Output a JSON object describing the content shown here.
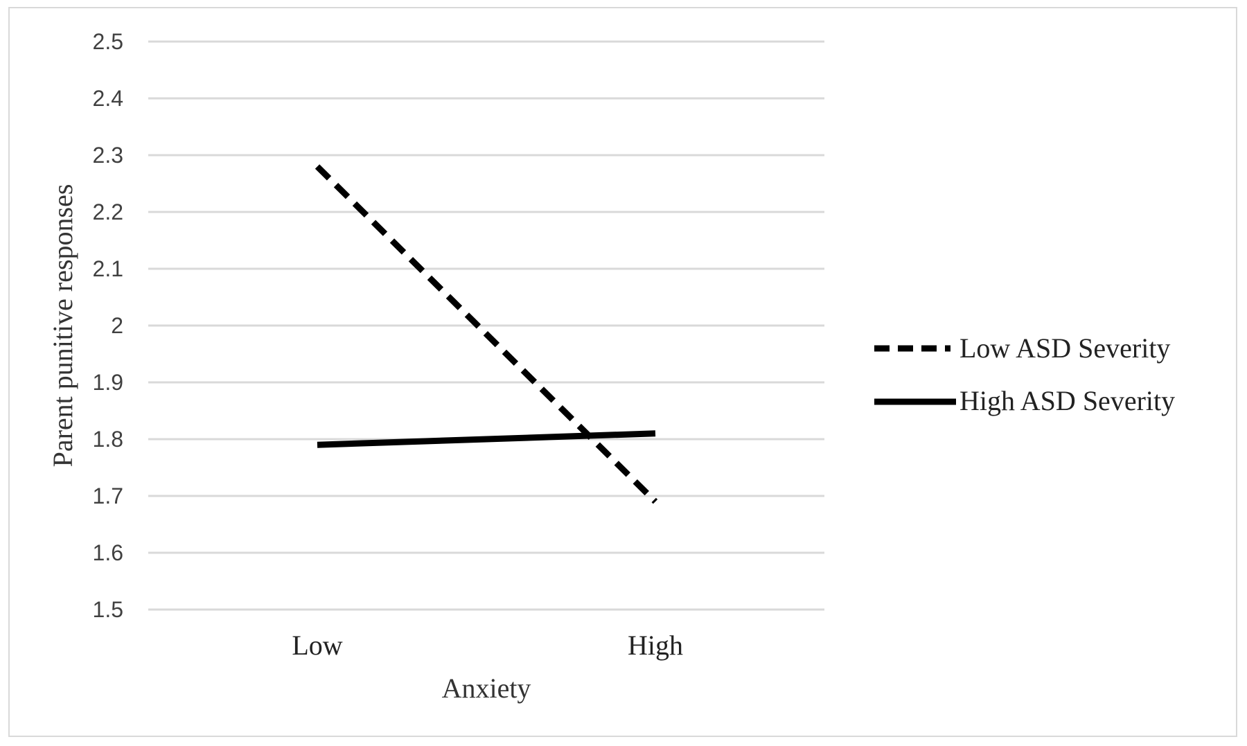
{
  "chart_data": {
    "type": "line",
    "title": "",
    "xlabel": "Anxiety",
    "ylabel": "Parent punitive responses",
    "categories": [
      "Low",
      "High"
    ],
    "ylim": [
      1.5,
      2.5
    ],
    "yticks": [
      "1.5",
      "1.6",
      "1.7",
      "1.8",
      "1.9",
      "2",
      "2.1",
      "2.2",
      "2.3",
      "2.4",
      "2.5"
    ],
    "grid": true,
    "legend_position": "right",
    "series": [
      {
        "name": "Low ASD Severity",
        "values": [
          2.28,
          1.69
        ],
        "style": "dashed",
        "color": "#000000"
      },
      {
        "name": "High ASD Severity",
        "values": [
          1.79,
          1.81
        ],
        "style": "solid",
        "color": "#000000"
      }
    ],
    "colors": {
      "grid": "#d9d9d9",
      "tick_text": "#404040"
    }
  }
}
